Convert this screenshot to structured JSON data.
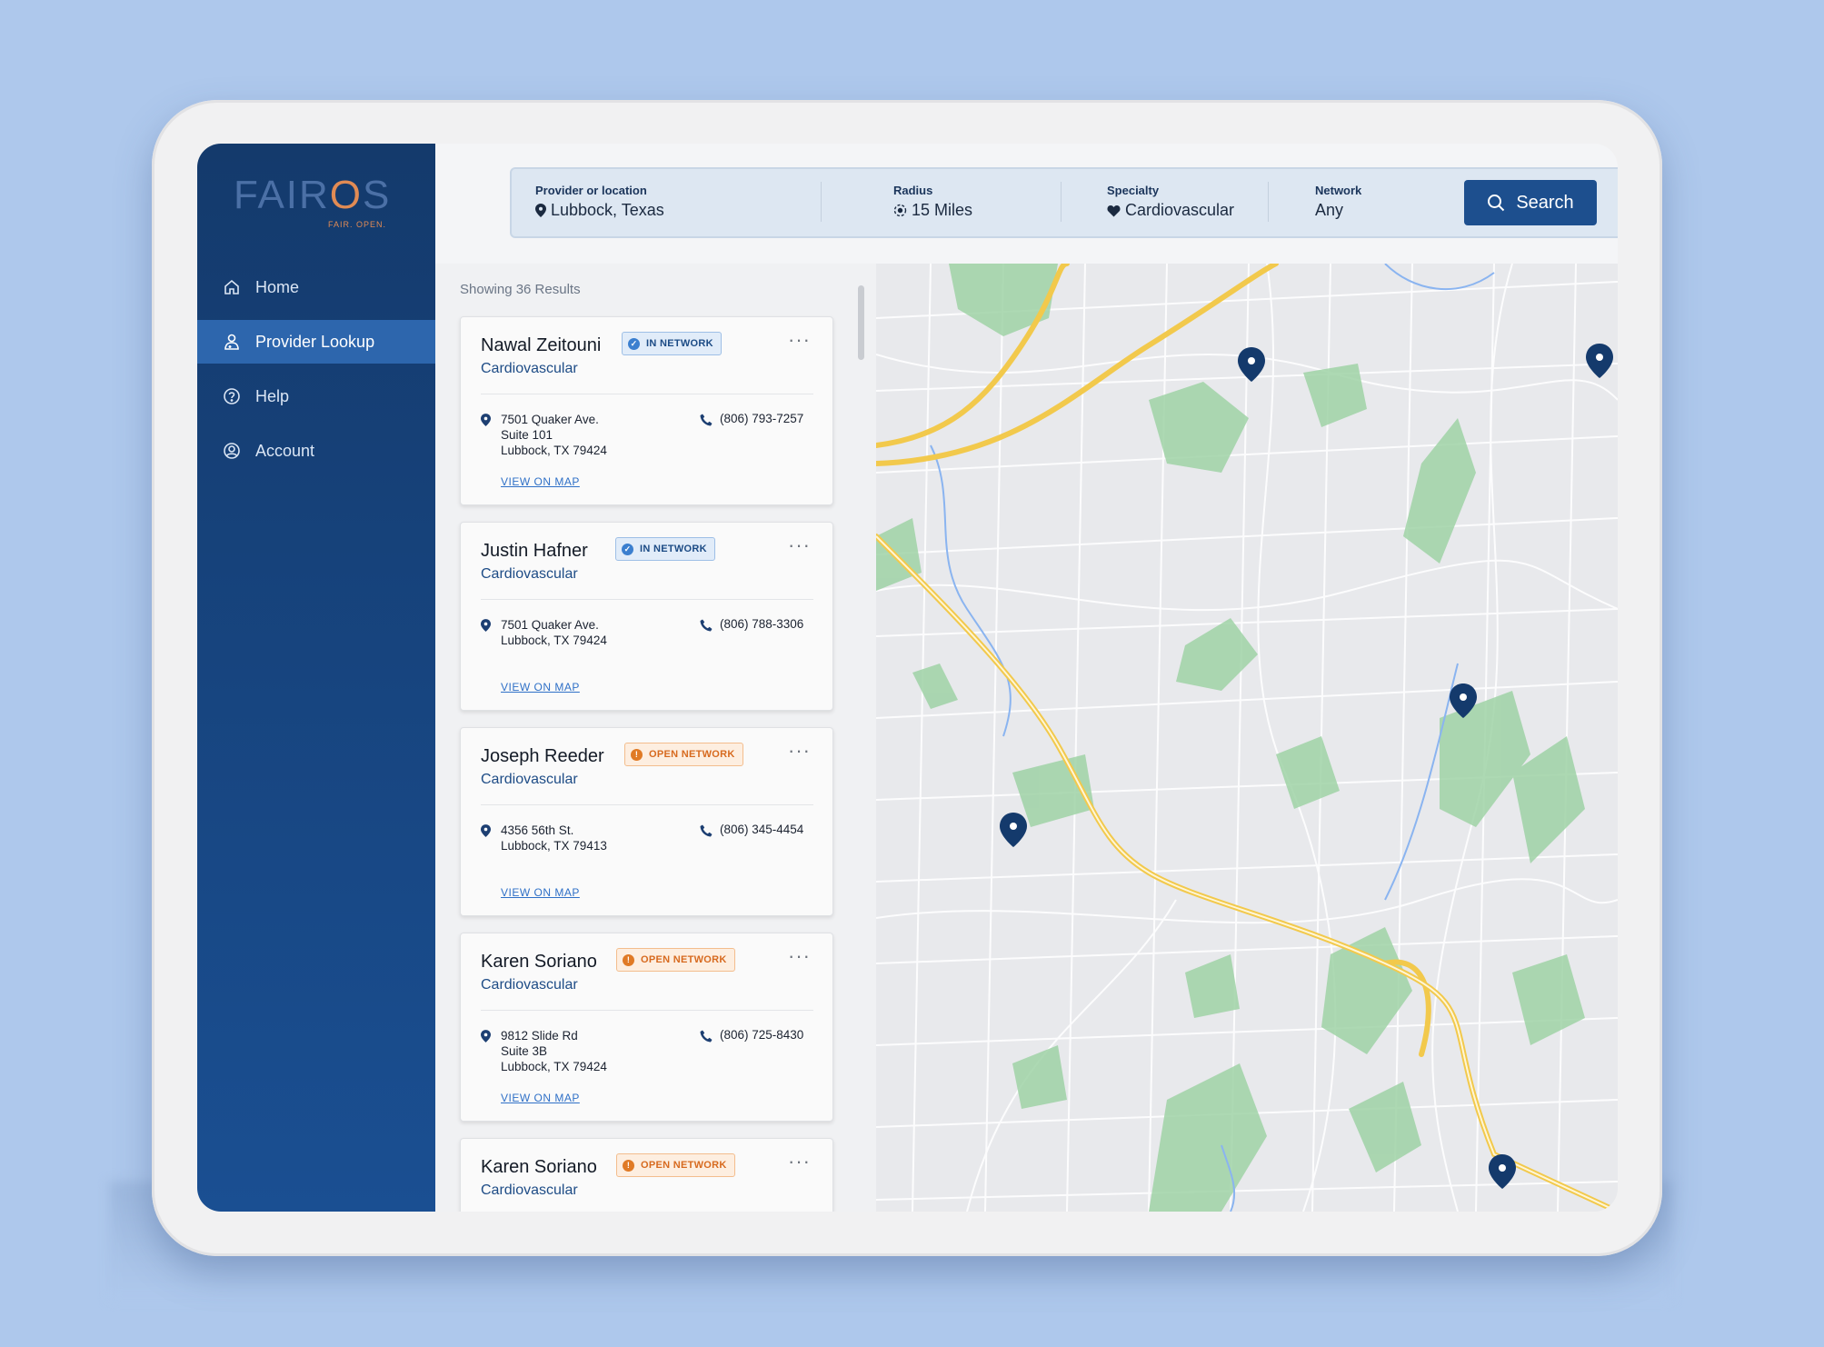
{
  "app": {
    "logo": "FAIR",
    "logo_o": "O",
    "logo_s": "S",
    "tagline": "FAIR. OPEN."
  },
  "sidebar": {
    "items": [
      {
        "label": "Home",
        "icon": "home-icon",
        "active": false
      },
      {
        "label": "Provider Lookup",
        "icon": "provider-icon",
        "active": true
      },
      {
        "label": "Help",
        "icon": "help-icon",
        "active": false
      },
      {
        "label": "Account",
        "icon": "account-icon",
        "active": false
      }
    ]
  },
  "search": {
    "provider_label": "Provider or location",
    "provider_value": "Lubbock, Texas",
    "radius_label": "Radius",
    "radius_value": "15 Miles",
    "specialty_label": "Specialty",
    "specialty_value": "Cardiovascular",
    "network_label": "Network",
    "network_value": "Any",
    "button_label": "Search"
  },
  "results": {
    "count_text": "Showing 36 Results",
    "view_map_label": "VIEW ON MAP",
    "cards": [
      {
        "name": "Nawal Zeitouni",
        "specialty": "Cardiovascular",
        "badge": "IN NETWORK",
        "badge_type": "in",
        "address": [
          "7501 Quaker Ave.",
          "Suite 101",
          "Lubbock, TX  79424"
        ],
        "phone": "(806) 793-7257"
      },
      {
        "name": "Justin Hafner",
        "specialty": "Cardiovascular",
        "badge": "IN NETWORK",
        "badge_type": "in",
        "address": [
          "7501 Quaker Ave.",
          "Lubbock, TX  79424"
        ],
        "phone": "(806) 788-3306"
      },
      {
        "name": "Joseph Reeder",
        "specialty": "Cardiovascular",
        "badge": "OPEN NETWORK",
        "badge_type": "open",
        "address": [
          "4356 56th St.",
          "Lubbock, TX  79413"
        ],
        "phone": "(806) 345-4454"
      },
      {
        "name": "Karen Soriano",
        "specialty": "Cardiovascular",
        "badge": "OPEN NETWORK",
        "badge_type": "open",
        "address": [
          "9812 Slide Rd",
          "Suite 3B",
          "Lubbock, TX  79424"
        ],
        "phone": "(806) 725-8430"
      },
      {
        "name": "Karen Soriano",
        "specialty": "Cardiovascular",
        "badge": "OPEN NETWORK",
        "badge_type": "open",
        "address": [],
        "phone": ""
      }
    ]
  },
  "colors": {
    "sidebar": "#1a4f92",
    "accent": "#1d4f8e",
    "in_network": "#3b7fcf",
    "open_network": "#e07a25",
    "map_pin": "#143a6c"
  }
}
